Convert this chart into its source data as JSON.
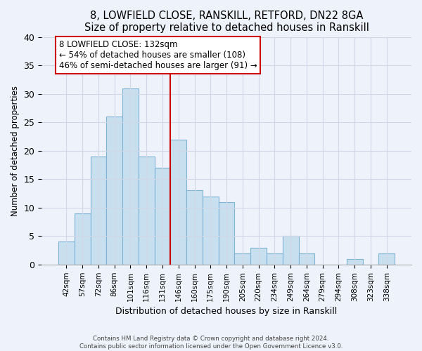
{
  "title": "8, LOWFIELD CLOSE, RANSKILL, RETFORD, DN22 8GA",
  "subtitle": "Size of property relative to detached houses in Ranskill",
  "xlabel": "Distribution of detached houses by size in Ranskill",
  "ylabel": "Number of detached properties",
  "bar_labels": [
    "42sqm",
    "57sqm",
    "72sqm",
    "86sqm",
    "101sqm",
    "116sqm",
    "131sqm",
    "146sqm",
    "160sqm",
    "175sqm",
    "190sqm",
    "205sqm",
    "220sqm",
    "234sqm",
    "249sqm",
    "264sqm",
    "279sqm",
    "294sqm",
    "308sqm",
    "323sqm",
    "338sqm"
  ],
  "bar_heights": [
    4,
    9,
    19,
    26,
    31,
    19,
    17,
    22,
    13,
    12,
    11,
    2,
    3,
    2,
    5,
    2,
    0,
    0,
    1,
    0,
    2
  ],
  "bar_color": "#c8dff0",
  "bar_edge_color": "#7fb3d3",
  "vline_color": "#cc0000",
  "annotation_line1": "8 LOWFIELD CLOSE: 132sqm",
  "annotation_line2": "← 54% of detached houses are smaller (108)",
  "annotation_line3": "46% of semi-detached houses are larger (91) →",
  "annotation_box_color": "#ffffff",
  "annotation_box_edge": "#cc0000",
  "ylim": [
    0,
    40
  ],
  "yticks": [
    0,
    5,
    10,
    15,
    20,
    25,
    30,
    35,
    40
  ],
  "grid_color": "#d0d8e8",
  "bg_color": "#eef2fa",
  "footer1": "Contains HM Land Registry data © Crown copyright and database right 2024.",
  "footer2": "Contains public sector information licensed under the Open Government Licence v3.0."
}
